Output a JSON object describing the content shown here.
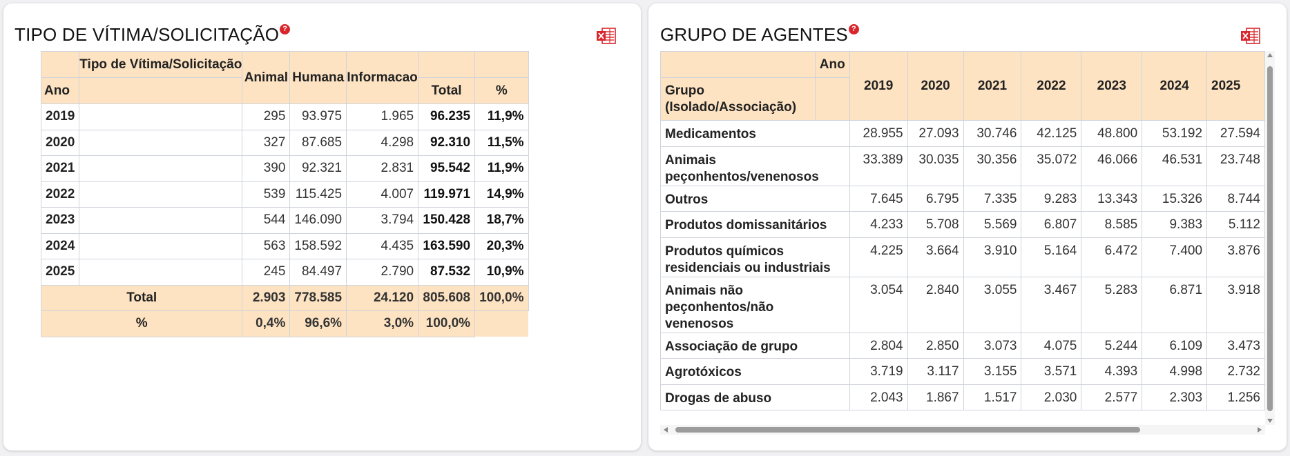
{
  "colors": {
    "header_bg": "#fde3c2",
    "help_icon": "#d9262c",
    "excel_icon": "#d9262c"
  },
  "tipo": {
    "title": "TIPO DE VÍTIMA/SOLICITAÇÃO",
    "help": "?",
    "header": {
      "corner": "Tipo de Vítima/Solicitação",
      "year": "Ano",
      "cols": [
        "Animal",
        "Humana",
        "Informacao"
      ],
      "total": "Total",
      "pct": "%"
    },
    "rows": [
      {
        "ano": "2019",
        "animal": "295",
        "humana": "93.975",
        "info": "1.965",
        "total": "96.235",
        "pct": "11,9%"
      },
      {
        "ano": "2020",
        "animal": "327",
        "humana": "87.685",
        "info": "4.298",
        "total": "92.310",
        "pct": "11,5%"
      },
      {
        "ano": "2021",
        "animal": "390",
        "humana": "92.321",
        "info": "2.831",
        "total": "95.542",
        "pct": "11,9%"
      },
      {
        "ano": "2022",
        "animal": "539",
        "humana": "115.425",
        "info": "4.007",
        "total": "119.971",
        "pct": "14,9%"
      },
      {
        "ano": "2023",
        "animal": "544",
        "humana": "146.090",
        "info": "3.794",
        "total": "150.428",
        "pct": "18,7%"
      },
      {
        "ano": "2024",
        "animal": "563",
        "humana": "158.592",
        "info": "4.435",
        "total": "163.590",
        "pct": "20,3%"
      },
      {
        "ano": "2025",
        "animal": "245",
        "humana": "84.497",
        "info": "2.790",
        "total": "87.532",
        "pct": "10,9%"
      }
    ],
    "total_row": {
      "label": "Total",
      "animal": "2.903",
      "humana": "778.585",
      "info": "24.120",
      "total": "805.608",
      "pct": "100,0%"
    },
    "pct_row": {
      "label": "%",
      "animal": "0,4%",
      "humana": "96,6%",
      "info": "3,0%",
      "total": "100,0%"
    }
  },
  "grupo": {
    "title": "GRUPO DE AGENTES",
    "help": "?",
    "header": {
      "ano": "Ano",
      "grupo": "Grupo (Isolado/Associação)",
      "years": [
        "2019",
        "2020",
        "2021",
        "2022",
        "2023",
        "2024",
        "2025"
      ]
    },
    "rows": [
      {
        "label": "Medicamentos",
        "values": [
          "28.955",
          "27.093",
          "30.746",
          "42.125",
          "48.800",
          "53.192",
          "27.594"
        ]
      },
      {
        "label": "Animais peçonhentos/venenosos",
        "values": [
          "33.389",
          "30.035",
          "30.356",
          "35.072",
          "46.066",
          "46.531",
          "23.748"
        ]
      },
      {
        "label": "Outros",
        "values": [
          "7.645",
          "6.795",
          "7.335",
          "9.283",
          "13.343",
          "15.326",
          "8.744"
        ]
      },
      {
        "label": "Produtos domissanitários",
        "values": [
          "4.233",
          "5.708",
          "5.569",
          "6.807",
          "8.585",
          "9.383",
          "5.112"
        ]
      },
      {
        "label": "Produtos químicos residenciais ou industriais",
        "values": [
          "4.225",
          "3.664",
          "3.910",
          "5.164",
          "6.472",
          "7.400",
          "3.876"
        ]
      },
      {
        "label": "Animais não peçonhentos/não venenosos",
        "values": [
          "3.054",
          "2.840",
          "3.055",
          "3.467",
          "5.283",
          "6.871",
          "3.918"
        ]
      },
      {
        "label": "Associação de grupo",
        "values": [
          "2.804",
          "2.850",
          "3.073",
          "4.075",
          "5.244",
          "6.109",
          "3.473"
        ]
      },
      {
        "label": "Agrotóxicos",
        "values": [
          "3.719",
          "3.117",
          "3.155",
          "3.571",
          "4.393",
          "4.998",
          "2.732"
        ]
      },
      {
        "label": "Drogas de abuso",
        "values": [
          "2.043",
          "1.867",
          "1.517",
          "2.030",
          "2.577",
          "2.303",
          "1.256"
        ]
      }
    ]
  },
  "icons": {
    "help": "question-circle-icon",
    "export": "excel-export-icon"
  }
}
